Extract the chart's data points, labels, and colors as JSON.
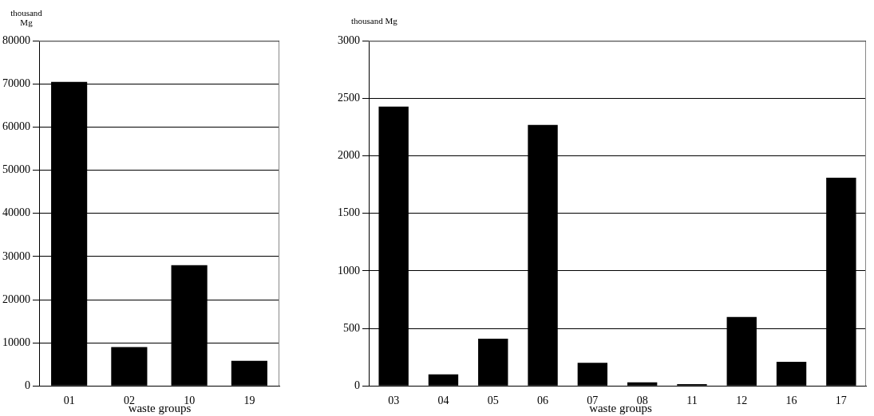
{
  "chart_data": [
    {
      "type": "bar",
      "ylabel": "thousand Mg",
      "xlabel": "waste groups",
      "categories": [
        "01",
        "02",
        "10",
        "19"
      ],
      "values": [
        70500,
        9000,
        28000,
        5800
      ],
      "color": "#000000",
      "ylim": [
        0,
        80000
      ],
      "yticks": [
        0,
        10000,
        20000,
        30000,
        40000,
        50000,
        60000,
        70000,
        80000
      ],
      "grid": "y",
      "legend": false
    },
    {
      "type": "bar",
      "ylabel": "thousand Mg",
      "xlabel": "waste groups",
      "categories": [
        "03",
        "04",
        "05",
        "06",
        "07",
        "08",
        "11",
        "12",
        "16",
        "17"
      ],
      "values": [
        2430,
        100,
        410,
        2270,
        200,
        30,
        15,
        600,
        210,
        1810
      ],
      "color": "#000000",
      "ylim": [
        0,
        3000
      ],
      "yticks": [
        0,
        500,
        1000,
        1500,
        2000,
        2500,
        3000
      ],
      "grid": "y",
      "legend": false
    }
  ]
}
